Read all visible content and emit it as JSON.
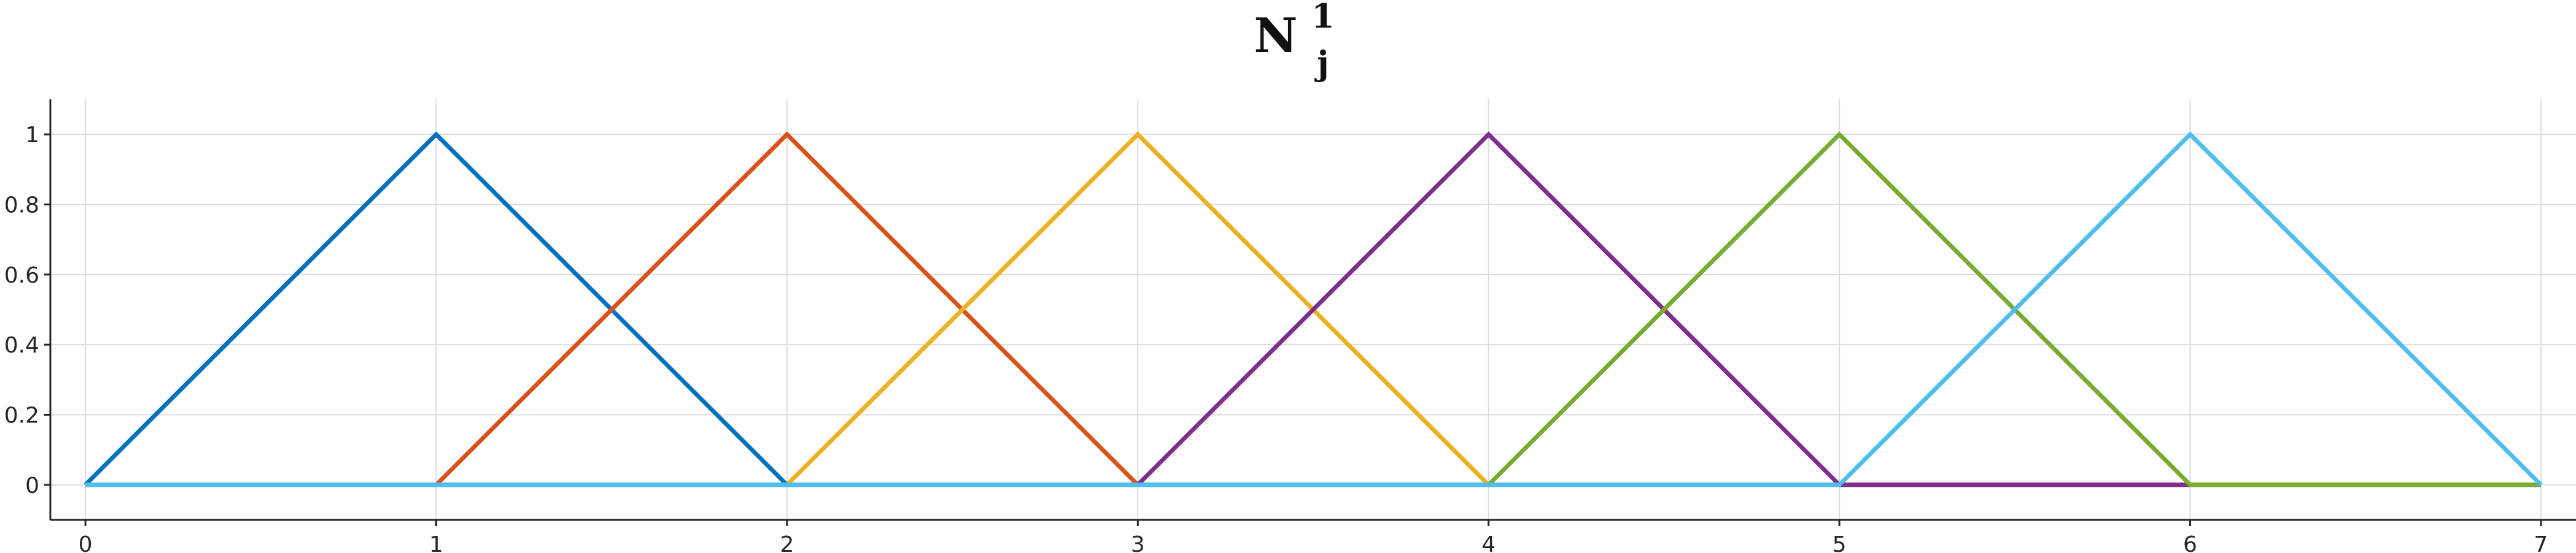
{
  "chart_data": {
    "type": "line",
    "title": "N",
    "title_superscript": "1",
    "title_subscript": "j",
    "xlabel": "",
    "ylabel": "",
    "xlim": [
      -0.1,
      7.1
    ],
    "ylim": [
      -0.1,
      1.1
    ],
    "x_ticks": [
      0,
      1,
      2,
      3,
      4,
      5,
      6,
      7
    ],
    "x_tick_labels": [
      "0",
      "1",
      "2",
      "3",
      "4",
      "5",
      "6",
      "7"
    ],
    "y_ticks": [
      0,
      0.2,
      0.4,
      0.6,
      0.8,
      1
    ],
    "y_tick_labels": [
      "0",
      "0.2",
      "0.4",
      "0.6",
      "0.8",
      "1"
    ],
    "grid": true,
    "legend": "none",
    "series": [
      {
        "color": "#0072BD",
        "x": [
          0,
          1,
          2,
          7
        ],
        "y": [
          0,
          1,
          0,
          0
        ]
      },
      {
        "color": "#D95319",
        "x": [
          0,
          1,
          2,
          3,
          7
        ],
        "y": [
          0,
          0,
          1,
          0,
          0
        ]
      },
      {
        "color": "#EDB120",
        "x": [
          0,
          2,
          3,
          4,
          7
        ],
        "y": [
          0,
          0,
          1,
          0,
          0
        ]
      },
      {
        "color": "#7E2F8E",
        "x": [
          0,
          3,
          4,
          5,
          7
        ],
        "y": [
          0,
          0,
          1,
          0,
          0
        ]
      },
      {
        "color": "#77AC30",
        "x": [
          0,
          4,
          5,
          6,
          7
        ],
        "y": [
          0,
          0,
          1,
          0,
          0
        ]
      },
      {
        "color": "#4DBEEE",
        "x": [
          0,
          5,
          6,
          7
        ],
        "y": [
          0,
          0,
          1,
          0
        ]
      }
    ]
  }
}
